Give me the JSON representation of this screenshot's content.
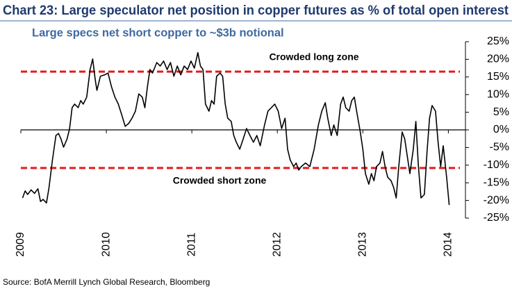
{
  "chart_data": {
    "type": "line",
    "title": "Chart 23: Large speculator net position in copper futures as % of total open interest",
    "subtitle": "Large specs net short copper to ~$3b notional",
    "source": "Source: BofA Merrill Lynch Global Research, Bloomberg",
    "annotations": [
      "Crowded long zone",
      "Crowded short zone"
    ],
    "reference_lines": [
      {
        "value": 16.5,
        "color": "#e41a1c"
      },
      {
        "value": -10.8,
        "color": "#e41a1c"
      }
    ],
    "series": [
      {
        "color": "#000000",
        "x": [
          2009.02,
          2009.05,
          2009.08,
          2009.12,
          2009.16,
          2009.2,
          2009.23,
          2009.26,
          2009.3,
          2009.33,
          2009.37,
          2009.41,
          2009.44,
          2009.47,
          2009.5,
          2009.54,
          2009.57,
          2009.6,
          2009.63,
          2009.67,
          2009.7,
          2009.73,
          2009.77,
          2009.81,
          2009.84,
          2009.87,
          2009.89,
          2009.93,
          2009.98,
          2010.02,
          2010.06,
          2010.1,
          2010.14,
          2010.18,
          2010.22,
          2010.26,
          2010.3,
          2010.34,
          2010.38,
          2010.42,
          2010.45,
          2010.48,
          2010.51,
          2010.54,
          2010.59,
          2010.63,
          2010.67,
          2010.71,
          2010.75,
          2010.79,
          2010.83,
          2010.87,
          2010.91,
          2010.95,
          2010.99,
          2011.03,
          2011.07,
          2011.1,
          2011.13,
          2011.16,
          2011.2,
          2011.23,
          2011.26,
          2011.29,
          2011.33,
          2011.36,
          2011.39,
          2011.42,
          2011.46,
          2011.49,
          2011.52,
          2011.56,
          2011.6,
          2011.64,
          2011.68,
          2011.72,
          2011.76,
          2011.8,
          2011.85,
          2011.89,
          2011.93,
          2011.97,
          2012.01,
          2012.05,
          2012.09,
          2012.12,
          2012.15,
          2012.19,
          2012.22,
          2012.25,
          2012.28,
          2012.33,
          2012.38,
          2012.43,
          2012.48,
          2012.52,
          2012.56,
          2012.59,
          2012.63,
          2012.66,
          2012.7,
          2012.74,
          2012.77,
          2012.8,
          2012.84,
          2012.87,
          2012.9,
          2012.93,
          2012.97,
          2013,
          2013.03,
          2013.07,
          2013.1,
          2013.13,
          2013.16,
          2013.2,
          2013.23,
          2013.26,
          2013.29,
          2013.33,
          2013.36,
          2013.39,
          2013.42,
          2013.46,
          2013.49,
          2013.52,
          2013.55,
          2013.59,
          2013.62,
          2013.65,
          2013.68,
          2013.72,
          2013.75,
          2013.78,
          2013.81,
          2013.85,
          2013.88,
          2013.91,
          2013.94,
          2013.98,
          2014.01
        ],
        "values": [
          -19.3,
          -17.3,
          -18.3,
          -17,
          -18,
          -16.7,
          -20.3,
          -19.7,
          -20.7,
          -16.3,
          -8.5,
          -1.6,
          -1,
          -2.6,
          -4.9,
          -2.6,
          0.4,
          6.3,
          7.3,
          6.3,
          8.3,
          7.3,
          9.3,
          17.1,
          20.1,
          14.2,
          11.2,
          15.2,
          15.6,
          16.1,
          12.2,
          9.3,
          7.3,
          4.3,
          1,
          1.8,
          3.3,
          5.3,
          10.2,
          9.3,
          6.3,
          12.2,
          17.1,
          16.1,
          19.1,
          18.1,
          19.5,
          17.1,
          19.1,
          15.2,
          18.1,
          15.6,
          18.1,
          17.1,
          19.5,
          17.5,
          21.9,
          18.1,
          17.1,
          7.3,
          5.3,
          8.3,
          7.3,
          15.2,
          16.1,
          15.2,
          7.3,
          3.3,
          2.4,
          -1.6,
          -3.5,
          -5.5,
          -2.6,
          0.4,
          -1.6,
          -3.5,
          -1.6,
          -4.5,
          1.4,
          5.3,
          6.3,
          7.3,
          5.3,
          0.4,
          3.3,
          -5.5,
          -8.5,
          -10.4,
          -9.4,
          -11.4,
          -10.4,
          -9.4,
          -10.4,
          -5.5,
          1.4,
          5.3,
          7.7,
          3.3,
          -1.6,
          1.4,
          -1.6,
          7.3,
          9.3,
          6.3,
          5.3,
          8.3,
          9.3,
          4.9,
          -0.6,
          -5.5,
          -12.4,
          -15.4,
          -12.4,
          -14.4,
          -10.4,
          -9.4,
          -6.1,
          -10.4,
          -13.4,
          -14.4,
          -16.3,
          -19.3,
          -10.4,
          -0.6,
          -2.6,
          -7.5,
          -12.4,
          -5.5,
          2.4,
          -10.4,
          -19.3,
          -18.3,
          -6.5,
          3.3,
          6.9,
          5.3,
          -3.5,
          -10.4,
          -4.5,
          -13.4,
          -21.3
        ]
      }
    ],
    "xlim": [
      2009,
      2014.2
    ],
    "xticks": [
      2009,
      2010,
      2011,
      2012,
      2013,
      2014
    ],
    "ylim": [
      -25,
      25
    ],
    "yticks": [
      {
        "value": -25,
        "label": "-25%"
      },
      {
        "value": -20,
        "label": "-20%"
      },
      {
        "value": -15,
        "label": "-15%"
      },
      {
        "value": -10,
        "label": "-10%"
      },
      {
        "value": -5,
        "label": "-5%"
      },
      {
        "value": 0,
        "label": "0%"
      },
      {
        "value": 5,
        "label": "5%"
      },
      {
        "value": 10,
        "label": "10%"
      },
      {
        "value": 15,
        "label": "15%"
      },
      {
        "value": 20,
        "label": "20%"
      },
      {
        "value": 25,
        "label": "25%"
      }
    ],
    "title_color": "#1f3a6e",
    "subtitle_color": "#3e6aa0",
    "grid": false
  }
}
